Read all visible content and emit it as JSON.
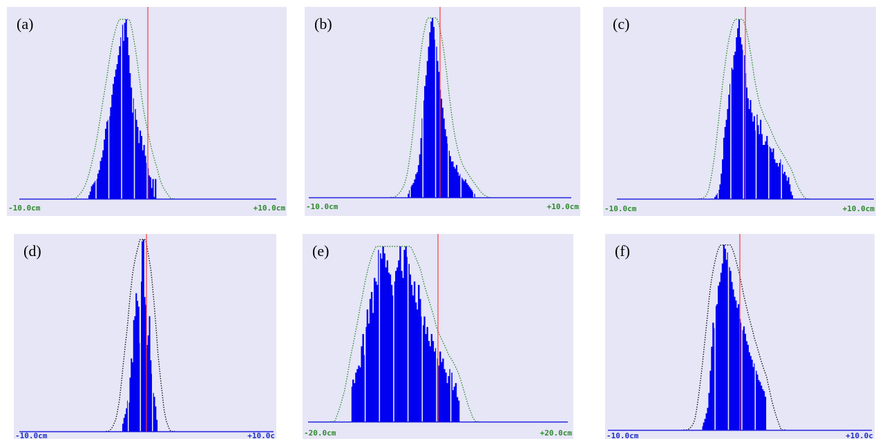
{
  "chart_data": [
    {
      "type": "bar",
      "panel_label": "(a)",
      "x_min": -10,
      "x_max": 10,
      "tick_labels": [
        "-10.0cm",
        "+10.0cm"
      ],
      "fit_curve": "dotted",
      "center_marker": 0,
      "values": [
        0,
        0,
        0,
        0,
        0,
        0,
        0,
        0,
        0,
        0,
        0,
        0,
        0,
        0,
        0,
        0,
        0,
        0,
        0,
        0,
        0,
        0,
        0,
        0,
        0,
        0,
        0,
        0,
        0,
        0,
        0,
        0,
        0,
        0,
        0,
        0,
        0,
        0,
        0,
        0,
        0,
        0,
        0,
        0,
        0,
        0,
        0,
        0,
        0,
        0,
        0,
        0,
        0,
        0,
        0.02,
        0.04,
        0.07,
        0.08,
        0.09,
        0.1,
        0.11,
        0.14,
        0.16,
        0.21,
        0.23,
        0.27,
        0.33,
        0.39,
        0.43,
        0.44,
        0.46,
        0.51,
        0.58,
        0.64,
        0.68,
        0.72,
        0.75,
        0.8,
        0.85,
        0.9,
        0.97,
        0.88,
        0.98,
        1.0,
        0.9,
        0.8,
        0.7,
        0.62,
        0.48,
        0.56,
        0.5,
        0.44,
        0.4,
        0.31,
        0.38,
        0.35,
        0.27,
        0.3,
        0.24,
        0.2,
        0.17,
        0.13,
        0.12,
        0.06,
        0.11,
        0.01,
        0.11,
        0,
        0,
        0,
        0,
        0,
        0,
        0,
        0,
        0,
        0,
        0,
        0,
        0,
        0,
        0,
        0,
        0,
        0,
        0,
        0,
        0,
        0,
        0,
        0,
        0,
        0,
        0,
        0,
        0,
        0,
        0,
        0,
        0,
        0,
        0,
        0,
        0,
        0,
        0,
        0,
        0,
        0,
        0,
        0,
        0,
        0,
        0,
        0,
        0,
        0,
        0,
        0,
        0,
        0,
        0,
        0,
        0,
        0,
        0,
        0,
        0,
        0,
        0,
        0,
        0,
        0,
        0,
        0,
        0,
        0,
        0,
        0,
        0,
        0,
        0,
        0,
        0,
        0,
        0,
        0,
        0,
        0,
        0,
        0,
        0,
        0,
        0,
        0,
        0,
        0,
        0,
        0,
        0,
        0
      ]
    },
    {
      "type": "bar",
      "panel_label": "(b)",
      "x_min": -10,
      "x_max": 10,
      "tick_labels": [
        "-10.0cm",
        "+10.0cm"
      ],
      "fit_curve": "dotted",
      "center_marker": 0,
      "values": [
        0,
        0,
        0,
        0,
        0,
        0,
        0,
        0,
        0,
        0,
        0,
        0,
        0,
        0,
        0,
        0,
        0,
        0,
        0,
        0,
        0,
        0,
        0,
        0,
        0,
        0,
        0,
        0,
        0,
        0,
        0,
        0,
        0,
        0,
        0,
        0,
        0,
        0,
        0,
        0,
        0,
        0,
        0,
        0,
        0,
        0,
        0,
        0,
        0,
        0,
        0,
        0,
        0,
        0,
        0,
        0,
        0,
        0,
        0,
        0,
        0,
        0,
        0,
        0,
        0,
        0,
        0,
        0,
        0,
        0,
        0,
        0,
        0,
        0,
        0,
        0,
        0,
        0,
        0.02,
        0.04,
        0.06,
        0.07,
        0.08,
        0.1,
        0.13,
        0.14,
        0.18,
        0.24,
        0.33,
        0.44,
        0.54,
        0.62,
        0.68,
        0.76,
        0.84,
        0.92,
        0.98,
        1.0,
        0.95,
        0.88,
        0.84,
        0.76,
        0.7,
        0.6,
        0.55,
        0.5,
        0.44,
        0.38,
        0.34,
        0.3,
        0.26,
        0.23,
        0.2,
        0.2,
        0.17,
        0.16,
        0.18,
        0.14,
        0.12,
        0.13,
        0.11,
        0.1,
        0.09,
        0.1,
        0.08,
        0.07,
        0.06,
        0.05,
        0.04,
        0.03,
        0.02,
        0,
        0,
        0,
        0,
        0,
        0,
        0,
        0,
        0,
        0,
        0,
        0,
        0,
        0,
        0,
        0,
        0,
        0,
        0,
        0,
        0,
        0,
        0,
        0,
        0,
        0,
        0,
        0,
        0,
        0,
        0,
        0,
        0,
        0,
        0,
        0,
        0,
        0,
        0,
        0,
        0,
        0,
        0,
        0,
        0,
        0,
        0,
        0,
        0,
        0,
        0,
        0,
        0,
        0,
        0,
        0,
        0,
        0,
        0,
        0,
        0,
        0,
        0,
        0,
        0,
        0,
        0,
        0,
        0,
        0,
        0,
        0,
        0,
        0,
        0,
        0
      ]
    },
    {
      "type": "bar",
      "panel_label": "(c)",
      "x_min": -10,
      "x_max": 10,
      "tick_labels": [
        "-10.0cm",
        "+10.0cm"
      ],
      "fit_curve": "dotted",
      "center_marker": 0,
      "values": [
        0,
        0,
        0,
        0,
        0,
        0,
        0,
        0,
        0,
        0,
        0,
        0,
        0,
        0,
        0,
        0,
        0,
        0,
        0,
        0,
        0,
        0,
        0,
        0,
        0,
        0,
        0,
        0,
        0,
        0,
        0,
        0,
        0,
        0,
        0,
        0,
        0,
        0,
        0,
        0,
        0,
        0,
        0,
        0,
        0,
        0,
        0,
        0,
        0,
        0,
        0,
        0,
        0,
        0,
        0,
        0,
        0,
        0,
        0,
        0,
        0,
        0,
        0,
        0,
        0,
        0,
        0,
        0,
        0,
        0,
        0,
        0,
        0,
        0,
        0,
        0,
        0,
        0.01,
        0.02,
        0.03,
        0.05,
        0.08,
        0.14,
        0.22,
        0.34,
        0.4,
        0.44,
        0.5,
        0.58,
        0.64,
        0.73,
        0.72,
        0.8,
        0.82,
        0.9,
        0.95,
        1.0,
        0.9,
        0.86,
        0.83,
        0.8,
        0.7,
        0.62,
        0.56,
        0.5,
        0.55,
        0.48,
        0.43,
        0.46,
        0.38,
        0.47,
        0.41,
        0.36,
        0.44,
        0.36,
        0.3,
        0.3,
        0.32,
        0.35,
        0.3,
        0.29,
        0.28,
        0.26,
        0.28,
        0.22,
        0.2,
        0.2,
        0.18,
        0.2,
        0.22,
        0.19,
        0.14,
        0.15,
        0.13,
        0.1,
        0.12,
        0.08,
        0.04,
        0.02,
        0,
        0,
        0,
        0,
        0,
        0,
        0,
        0,
        0,
        0,
        0,
        0,
        0,
        0,
        0,
        0,
        0,
        0,
        0,
        0,
        0,
        0,
        0,
        0,
        0,
        0,
        0,
        0,
        0,
        0,
        0,
        0,
        0,
        0,
        0,
        0,
        0,
        0,
        0,
        0,
        0,
        0,
        0,
        0,
        0,
        0,
        0,
        0,
        0,
        0,
        0,
        0,
        0,
        0,
        0,
        0,
        0,
        0,
        0,
        0,
        0,
        0,
        0,
        0
      ]
    },
    {
      "type": "bar",
      "panel_label": "(d)",
      "x_min": -10,
      "x_max": 10,
      "tick_labels": [
        "-10.0cm",
        "+10.0c"
      ],
      "fit_curve": "dotted",
      "center_marker": 0,
      "values": [
        0,
        0,
        0,
        0,
        0,
        0,
        0,
        0,
        0,
        0,
        0,
        0,
        0,
        0,
        0,
        0,
        0,
        0,
        0,
        0,
        0,
        0,
        0,
        0,
        0,
        0,
        0,
        0,
        0,
        0,
        0,
        0,
        0,
        0,
        0,
        0,
        0,
        0,
        0,
        0,
        0,
        0,
        0,
        0,
        0,
        0,
        0,
        0,
        0,
        0,
        0,
        0,
        0,
        0,
        0,
        0,
        0,
        0,
        0,
        0,
        0,
        0,
        0,
        0,
        0,
        0,
        0,
        0,
        0,
        0,
        0,
        0,
        0,
        0,
        0,
        0,
        0,
        0,
        0,
        0,
        0,
        0,
        0,
        0,
        0,
        0.04,
        0.07,
        0.09,
        0.12,
        0.16,
        0.15,
        0.28,
        0.38,
        0.36,
        0.58,
        0.6,
        0.72,
        0.68,
        0.65,
        0.46,
        0.78,
        0.99,
        1.0,
        0.7,
        0.66,
        0.45,
        0.5,
        0.6,
        0.37,
        0.3,
        0.2,
        0.18,
        0.13,
        0.06,
        0,
        0,
        0,
        0,
        0,
        0,
        0,
        0,
        0,
        0,
        0,
        0,
        0,
        0,
        0,
        0,
        0,
        0,
        0,
        0,
        0,
        0,
        0,
        0,
        0,
        0,
        0,
        0,
        0,
        0,
        0,
        0,
        0,
        0,
        0,
        0,
        0,
        0,
        0,
        0,
        0,
        0,
        0,
        0,
        0,
        0,
        0,
        0,
        0,
        0,
        0,
        0,
        0,
        0,
        0,
        0,
        0,
        0,
        0,
        0,
        0,
        0,
        0,
        0,
        0,
        0,
        0,
        0,
        0,
        0,
        0,
        0,
        0,
        0,
        0,
        0,
        0,
        0,
        0,
        0,
        0,
        0,
        0,
        0,
        0,
        0,
        0,
        0,
        0,
        0,
        0,
        0,
        0,
        0,
        0,
        0
      ]
    },
    {
      "type": "bar",
      "panel_label": "(e)",
      "x_min": -20,
      "x_max": 20,
      "tick_labels": [
        "-20.0cm",
        "+20.0cm"
      ],
      "fit_curve": "dotted",
      "center_marker": 0,
      "values": [
        0,
        0,
        0,
        0,
        0,
        0,
        0,
        0,
        0,
        0,
        0,
        0,
        0,
        0,
        0,
        0,
        0,
        0,
        0,
        0,
        0,
        0,
        0,
        0,
        0,
        0,
        0,
        0,
        0,
        0,
        0.2,
        0.24,
        0.22,
        0.28,
        0.3,
        0.32,
        0.31,
        0.43,
        0.5,
        0.38,
        0.54,
        0.64,
        0.56,
        0.7,
        0.74,
        0.62,
        0.82,
        0.8,
        0.78,
        0.98,
        0.96,
        0.93,
        1.0,
        0.96,
        0.88,
        0.92,
        0.85,
        0.84,
        0.78,
        0.72,
        0.8,
        0.86,
        0.88,
        0.92,
        1.0,
        0.86,
        0.82,
        0.98,
        1.0,
        0.94,
        0.9,
        0.84,
        0.78,
        0.72,
        0.8,
        0.68,
        0.64,
        0.78,
        0.7,
        0.6,
        0.55,
        0.6,
        0.5,
        0.54,
        0.46,
        0.43,
        0.5,
        0.46,
        0.4,
        0.42,
        0.36,
        0.32,
        0.4,
        0.34,
        0.36,
        0.3,
        0.28,
        0.22,
        0.26,
        0.3,
        0.28,
        0.18,
        0.2,
        0.22,
        0.14,
        0.12,
        0,
        0,
        0,
        0,
        0,
        0,
        0,
        0,
        0,
        0,
        0,
        0,
        0,
        0,
        0,
        0,
        0,
        0,
        0,
        0,
        0,
        0,
        0,
        0,
        0,
        0,
        0,
        0,
        0,
        0,
        0,
        0,
        0,
        0,
        0,
        0,
        0,
        0,
        0,
        0,
        0,
        0,
        0,
        0,
        0,
        0,
        0,
        0,
        0,
        0,
        0,
        0,
        0,
        0,
        0,
        0,
        0,
        0,
        0,
        0,
        0,
        0,
        0,
        0,
        0,
        0,
        0,
        0,
        0,
        0,
        0,
        0,
        0,
        0,
        0,
        0
      ]
    },
    {
      "type": "bar",
      "panel_label": "(f)",
      "x_min": -10,
      "x_max": 10,
      "tick_labels": [
        "-10.0cm",
        "+10.0c"
      ],
      "fit_curve": "dotted",
      "center_marker": 0,
      "values": [
        0,
        0,
        0,
        0,
        0,
        0,
        0,
        0,
        0,
        0,
        0,
        0,
        0,
        0,
        0,
        0,
        0,
        0,
        0,
        0,
        0,
        0,
        0,
        0,
        0,
        0,
        0,
        0,
        0,
        0,
        0,
        0,
        0,
        0,
        0,
        0,
        0,
        0,
        0,
        0,
        0,
        0,
        0,
        0,
        0,
        0,
        0,
        0,
        0,
        0,
        0,
        0,
        0,
        0,
        0,
        0,
        0,
        0,
        0,
        0,
        0,
        0,
        0,
        0,
        0,
        0,
        0,
        0,
        0,
        0,
        0.02,
        0.04,
        0.06,
        0.09,
        0.12,
        0.2,
        0.32,
        0.45,
        0.58,
        0.55,
        0.67,
        0.68,
        0.78,
        0.8,
        0.85,
        0.9,
        1.0,
        0.98,
        0.92,
        0.96,
        0.88,
        0.86,
        0.8,
        0.76,
        0.72,
        0.7,
        0.66,
        0.68,
        0.6,
        0.58,
        0.54,
        0.56,
        0.52,
        0.48,
        0.46,
        0.42,
        0.4,
        0.38,
        0.34,
        0.36,
        0.32,
        0.3,
        0.27,
        0.26,
        0.24,
        0.22,
        0.21,
        0.18,
        0,
        0,
        0,
        0,
        0,
        0,
        0,
        0,
        0,
        0,
        0,
        0,
        0,
        0,
        0,
        0,
        0,
        0,
        0,
        0,
        0,
        0,
        0,
        0,
        0,
        0,
        0,
        0,
        0,
        0,
        0,
        0,
        0,
        0,
        0,
        0,
        0,
        0,
        0,
        0,
        0,
        0,
        0,
        0,
        0,
        0,
        0,
        0,
        0,
        0,
        0,
        0,
        0,
        0,
        0,
        0,
        0,
        0,
        0,
        0,
        0,
        0,
        0,
        0,
        0,
        0,
        0,
        0,
        0,
        0,
        0,
        0,
        0,
        0,
        0,
        0,
        0,
        0,
        0
      ]
    }
  ],
  "colors": {
    "panel_bg": "#e6e6f6",
    "bar": "#0000f0",
    "baseline": "#2020e0",
    "center_line": "#ff3b3b",
    "fit_green": "#2f8a2f",
    "fit_black": "#111111",
    "tick_green": "#2f8a2f",
    "tick_blue": "#2030c0"
  }
}
